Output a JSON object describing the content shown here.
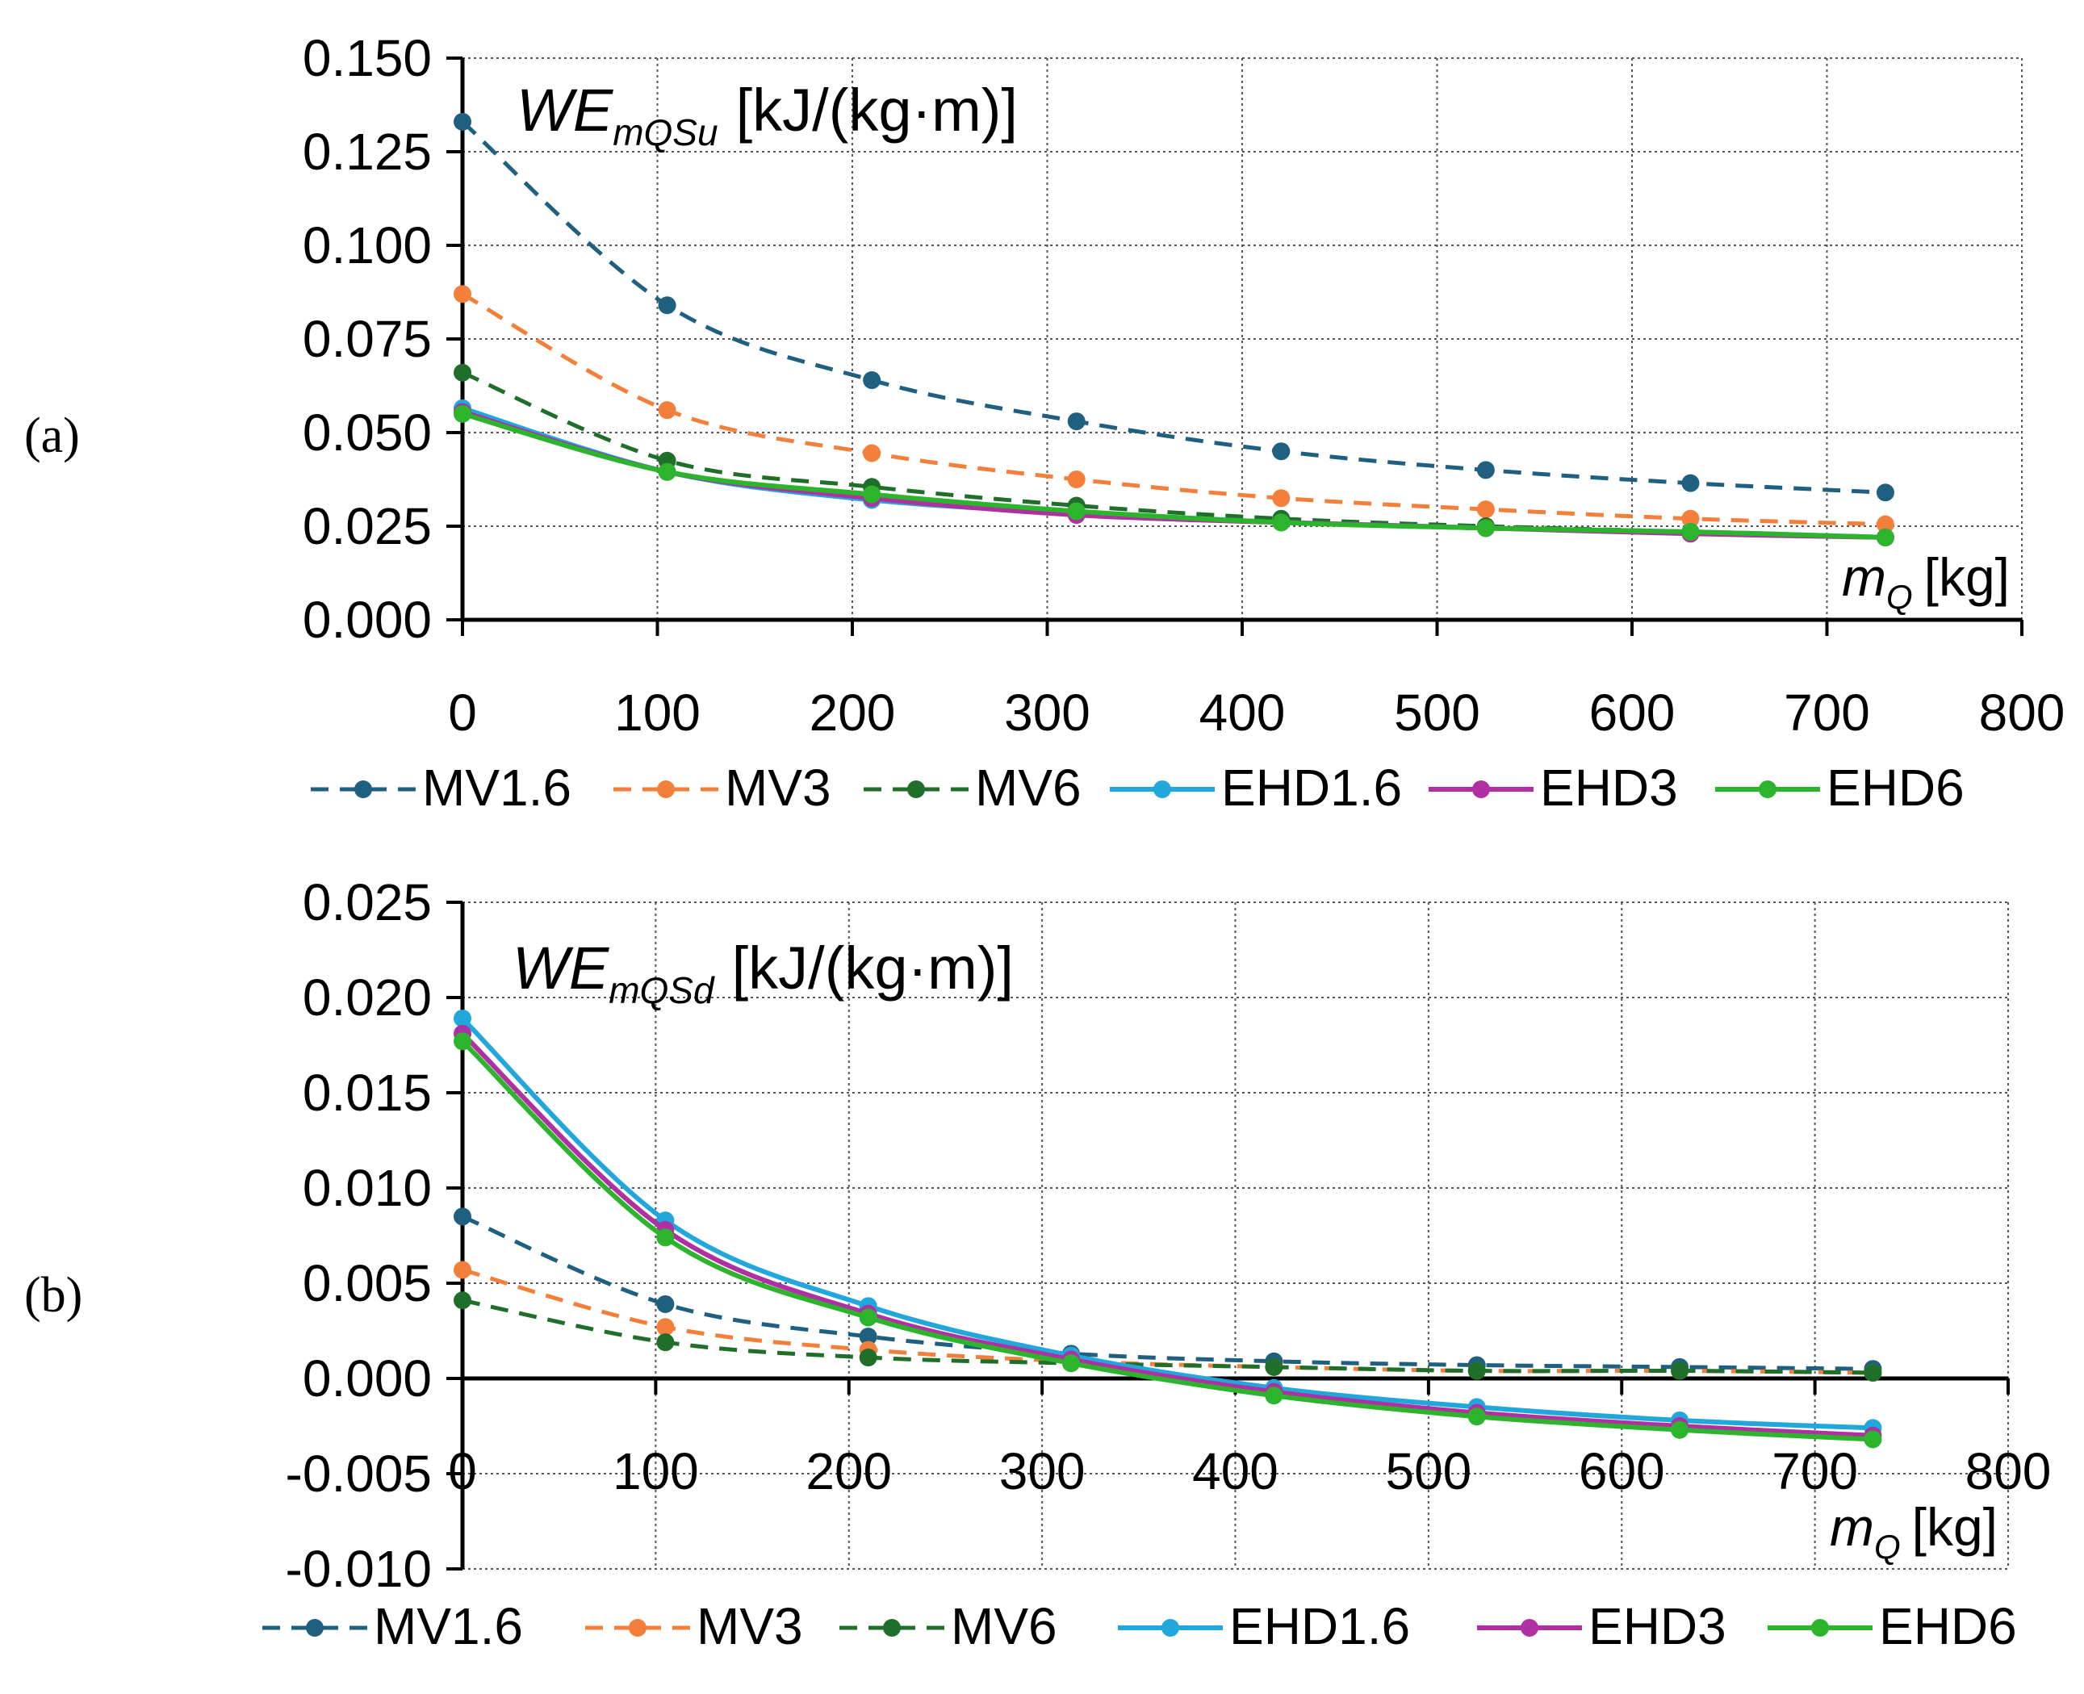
{
  "figure": {
    "panel_labels": [
      "(a)",
      "(b)"
    ]
  },
  "series_meta": [
    {
      "name": "MV1.6",
      "color": "#1f5f7f",
      "style": "dashed"
    },
    {
      "name": "MV3",
      "color": "#f47f3a",
      "style": "dashed"
    },
    {
      "name": "MV6",
      "color": "#1f6f2a",
      "style": "dashed"
    },
    {
      "name": "EHD1.6",
      "color": "#22a7dd",
      "style": "solid"
    },
    {
      "name": "EHD3",
      "color": "#b02fa2",
      "style": "solid"
    },
    {
      "name": "EHD6",
      "color": "#2cb52c",
      "style": "solid"
    }
  ],
  "chart_data": [
    {
      "type": "line",
      "panel": "(a)",
      "title_main": "WE",
      "title_sub": "mQSu",
      "title_unit": "[kJ/(kg·m)]",
      "xlabel_main": "m",
      "xlabel_sub": "Q",
      "xlabel_unit": "[kg]",
      "xlim": [
        0,
        800
      ],
      "ylim": [
        0,
        0.15
      ],
      "xticks": [
        0,
        100,
        200,
        300,
        400,
        500,
        600,
        700,
        800
      ],
      "xtick_labels": [
        "0",
        "100",
        "200",
        "300",
        "400",
        "500",
        "600",
        "700",
        "800"
      ],
      "yticks": [
        0,
        0.025,
        0.05,
        0.075,
        0.1,
        0.125,
        0.15
      ],
      "ytick_labels": [
        "0.000",
        "0.025",
        "0.050",
        "0.075",
        "0.100",
        "0.125",
        "0.150"
      ],
      "grid": true,
      "legend": "bottom",
      "x": [
        0,
        105,
        210,
        315,
        420,
        525,
        630,
        730
      ],
      "series": [
        {
          "name": "MV1.6",
          "values": [
            0.133,
            0.084,
            0.064,
            0.053,
            0.045,
            0.04,
            0.0365,
            0.034
          ]
        },
        {
          "name": "MV3",
          "values": [
            0.087,
            0.056,
            0.0445,
            0.0375,
            0.0325,
            0.0295,
            0.027,
            0.0255
          ]
        },
        {
          "name": "MV6",
          "values": [
            0.066,
            0.0425,
            0.0355,
            0.0305,
            0.027,
            0.025,
            0.0235,
            0.022
          ]
        },
        {
          "name": "EHD1.6",
          "values": [
            0.0565,
            0.0395,
            0.032,
            0.0285,
            0.026,
            0.0245,
            0.0235,
            0.022
          ]
        },
        {
          "name": "EHD3",
          "values": [
            0.0555,
            0.0395,
            0.0325,
            0.028,
            0.026,
            0.0245,
            0.023,
            0.022
          ]
        },
        {
          "name": "EHD6",
          "values": [
            0.055,
            0.0395,
            0.0335,
            0.029,
            0.026,
            0.0245,
            0.0235,
            0.022
          ]
        }
      ]
    },
    {
      "type": "line",
      "panel": "(b)",
      "title_main": "WE",
      "title_sub": "mQSd",
      "title_unit": "[kJ/(kg·m)]",
      "xlabel_main": "m",
      "xlabel_sub": "Q",
      "xlabel_unit": "[kg]",
      "xlim": [
        0,
        800
      ],
      "ylim": [
        -0.01,
        0.025
      ],
      "xticks": [
        0,
        100,
        200,
        300,
        400,
        500,
        600,
        700,
        800
      ],
      "xtick_labels": [
        "0",
        "100",
        "200",
        "300",
        "400",
        "500",
        "600",
        "700",
        "800"
      ],
      "yticks": [
        -0.01,
        -0.005,
        0,
        0.005,
        0.01,
        0.015,
        0.02,
        0.025
      ],
      "ytick_labels": [
        "-0.010",
        "-0.005",
        "0.000",
        "0.005",
        "0.010",
        "0.015",
        "0.020",
        "0.025"
      ],
      "grid": true,
      "legend": "bottom",
      "x": [
        0,
        105,
        210,
        315,
        420,
        525,
        630,
        730
      ],
      "series": [
        {
          "name": "MV1.6",
          "values": [
            0.0085,
            0.0039,
            0.0022,
            0.0013,
            0.0009,
            0.0007,
            0.0006,
            0.0005
          ]
        },
        {
          "name": "MV3",
          "values": [
            0.0057,
            0.0027,
            0.0015,
            0.0009,
            0.0006,
            0.0004,
            0.0004,
            0.0003
          ]
        },
        {
          "name": "MV6",
          "values": [
            0.0041,
            0.0019,
            0.0011,
            0.0008,
            0.0006,
            0.0004,
            0.0004,
            0.0003
          ]
        },
        {
          "name": "EHD1.6",
          "values": [
            0.0189,
            0.0083,
            0.0038,
            0.0012,
            -0.0005,
            -0.0015,
            -0.0022,
            -0.0026
          ]
        },
        {
          "name": "EHD3",
          "values": [
            0.0181,
            0.0078,
            0.0034,
            0.001,
            -0.0007,
            -0.0018,
            -0.0025,
            -0.003
          ]
        },
        {
          "name": "EHD6",
          "values": [
            0.0177,
            0.0074,
            0.0032,
            0.0008,
            -0.0009,
            -0.002,
            -0.0027,
            -0.0032
          ]
        }
      ]
    }
  ]
}
